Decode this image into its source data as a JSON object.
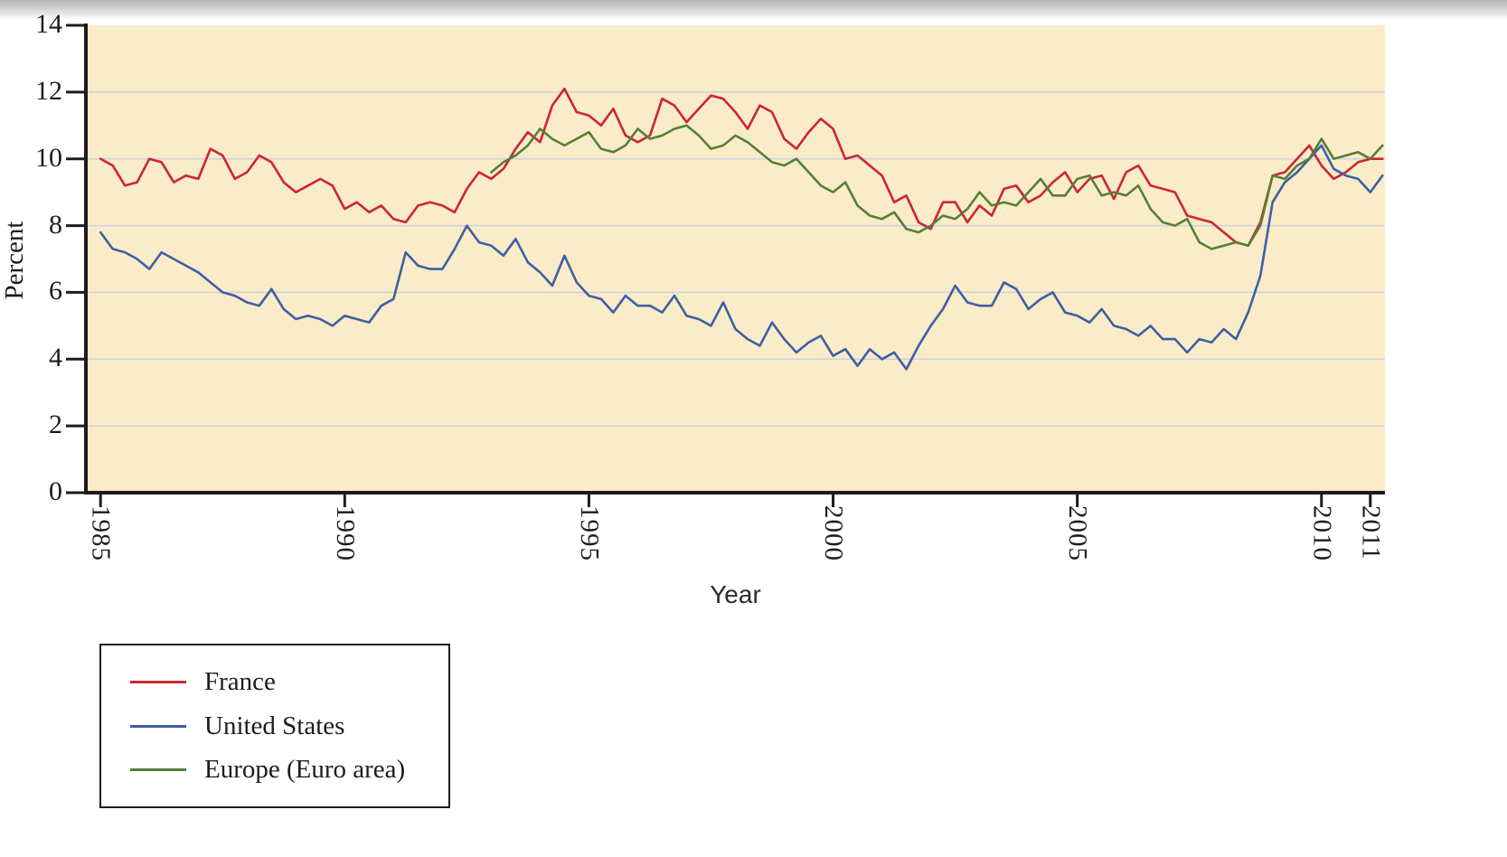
{
  "figure": {
    "background": "#ffffff",
    "plot_background": "#faecc8"
  },
  "chart_data": {
    "type": "line",
    "title": "",
    "xlabel": "Year",
    "ylabel": "Percent",
    "ylim": [
      0,
      14
    ],
    "xlim": [
      1984.7,
      2011.3
    ],
    "yticks": [
      0,
      2,
      4,
      6,
      8,
      10,
      12,
      14
    ],
    "xticks": [
      1985,
      1990,
      1995,
      2000,
      2005,
      2010,
      2011
    ],
    "gridlines_at": [
      2,
      4,
      6,
      8,
      10,
      12
    ],
    "gridline_color": "#ccd3de",
    "axis_color": "#1c1c1c",
    "legend_position": "bottom-left",
    "x_start": 1985,
    "x_step": 0.25,
    "series": [
      {
        "name": "France",
        "color": "#cd2532",
        "values": [
          10.0,
          9.8,
          9.2,
          9.3,
          10.0,
          9.9,
          9.3,
          9.5,
          9.4,
          10.3,
          10.1,
          9.4,
          9.6,
          10.1,
          9.9,
          9.3,
          9.0,
          9.2,
          9.4,
          9.2,
          8.5,
          8.7,
          8.4,
          8.6,
          8.2,
          8.1,
          8.6,
          8.7,
          8.6,
          8.4,
          9.1,
          9.6,
          9.4,
          9.7,
          10.3,
          10.8,
          10.5,
          11.6,
          12.1,
          11.4,
          11.3,
          11.0,
          11.5,
          10.7,
          10.5,
          10.7,
          11.8,
          11.6,
          11.1,
          11.5,
          11.9,
          11.8,
          11.4,
          10.9,
          11.6,
          11.4,
          10.6,
          10.3,
          10.8,
          11.2,
          10.9,
          10.0,
          10.1,
          9.8,
          9.5,
          8.7,
          8.9,
          8.1,
          7.9,
          8.7,
          8.7,
          8.1,
          8.6,
          8.3,
          9.1,
          9.2,
          8.7,
          8.9,
          9.3,
          9.6,
          9.0,
          9.4,
          9.5,
          8.8,
          9.6,
          9.8,
          9.2,
          9.1,
          9.0,
          8.3,
          8.2,
          8.1,
          7.8,
          7.5,
          7.4,
          8.1,
          9.5,
          9.6,
          10.0,
          10.4,
          9.8,
          9.4,
          9.6,
          9.9,
          10.0,
          10.0
        ]
      },
      {
        "name": "United States",
        "color": "#3e5fa6",
        "values": [
          7.8,
          7.3,
          7.2,
          7.0,
          6.7,
          7.2,
          7.0,
          6.8,
          6.6,
          6.3,
          6.0,
          5.9,
          5.7,
          5.6,
          6.1,
          5.5,
          5.2,
          5.3,
          5.2,
          5.0,
          5.3,
          5.2,
          5.1,
          5.6,
          5.8,
          7.2,
          6.8,
          6.7,
          6.7,
          7.3,
          8.0,
          7.5,
          7.4,
          7.1,
          7.6,
          6.9,
          6.6,
          6.2,
          7.1,
          6.3,
          5.9,
          5.8,
          5.4,
          5.9,
          5.6,
          5.6,
          5.4,
          5.9,
          5.3,
          5.2,
          5.0,
          5.7,
          4.9,
          4.6,
          4.4,
          5.1,
          4.6,
          4.2,
          4.5,
          4.7,
          4.1,
          4.3,
          3.8,
          4.3,
          4.0,
          4.2,
          3.7,
          4.4,
          5.0,
          5.5,
          6.2,
          5.7,
          5.6,
          5.6,
          6.3,
          6.1,
          5.5,
          5.8,
          6.0,
          5.4,
          5.3,
          5.1,
          5.5,
          5.0,
          4.9,
          4.7,
          5.0,
          4.6,
          4.6,
          4.2,
          4.6,
          4.5,
          4.9,
          4.6,
          5.4,
          6.5,
          8.7,
          9.3,
          9.6,
          10.0,
          10.4,
          9.7,
          9.5,
          9.4,
          9.0,
          9.5
        ]
      },
      {
        "name": "Europe (Euro area)",
        "color": "#567f35",
        "values": [
          null,
          null,
          null,
          null,
          null,
          null,
          null,
          null,
          null,
          null,
          null,
          null,
          null,
          null,
          null,
          null,
          null,
          null,
          null,
          null,
          null,
          null,
          null,
          null,
          null,
          null,
          null,
          null,
          null,
          null,
          null,
          null,
          9.6,
          9.9,
          10.1,
          10.4,
          10.9,
          10.6,
          10.4,
          10.6,
          10.8,
          10.3,
          10.2,
          10.4,
          10.9,
          10.6,
          10.7,
          10.9,
          11.0,
          10.7,
          10.3,
          10.4,
          10.7,
          10.5,
          10.2,
          9.9,
          9.8,
          10.0,
          9.6,
          9.2,
          9.0,
          9.3,
          8.6,
          8.3,
          8.2,
          8.4,
          7.9,
          7.8,
          8.0,
          8.3,
          8.2,
          8.5,
          9.0,
          8.6,
          8.7,
          8.6,
          9.0,
          9.4,
          8.9,
          8.9,
          9.4,
          9.5,
          8.9,
          9.0,
          8.9,
          9.2,
          8.5,
          8.1,
          8.0,
          8.2,
          7.5,
          7.3,
          7.4,
          7.5,
          7.4,
          8.0,
          9.5,
          9.4,
          9.8,
          10.0,
          10.6,
          10.0,
          10.1,
          10.2,
          10.0,
          10.4
        ]
      }
    ]
  }
}
